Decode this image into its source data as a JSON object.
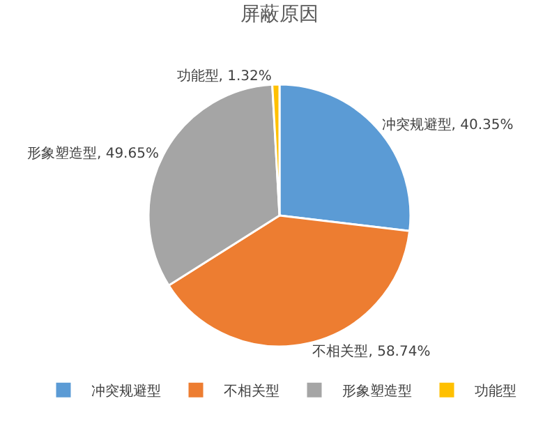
{
  "chart_data": {
    "type": "pie",
    "title": "屏蔽原因",
    "categories": [
      "冲突规避型",
      "不相关型",
      "形象塑造型",
      "功能型"
    ],
    "values": [
      40.35,
      58.74,
      49.65,
      1.32
    ],
    "colors": [
      "#5b9bd5",
      "#ed7d31",
      "#a5a5a5",
      "#ffc000"
    ],
    "value_labels": [
      "冲突规避型, 40.35%",
      "不相关型, 58.74%",
      "形象塑造型, 49.65%",
      "功能型, 1.32%"
    ],
    "legend": "bottom"
  }
}
